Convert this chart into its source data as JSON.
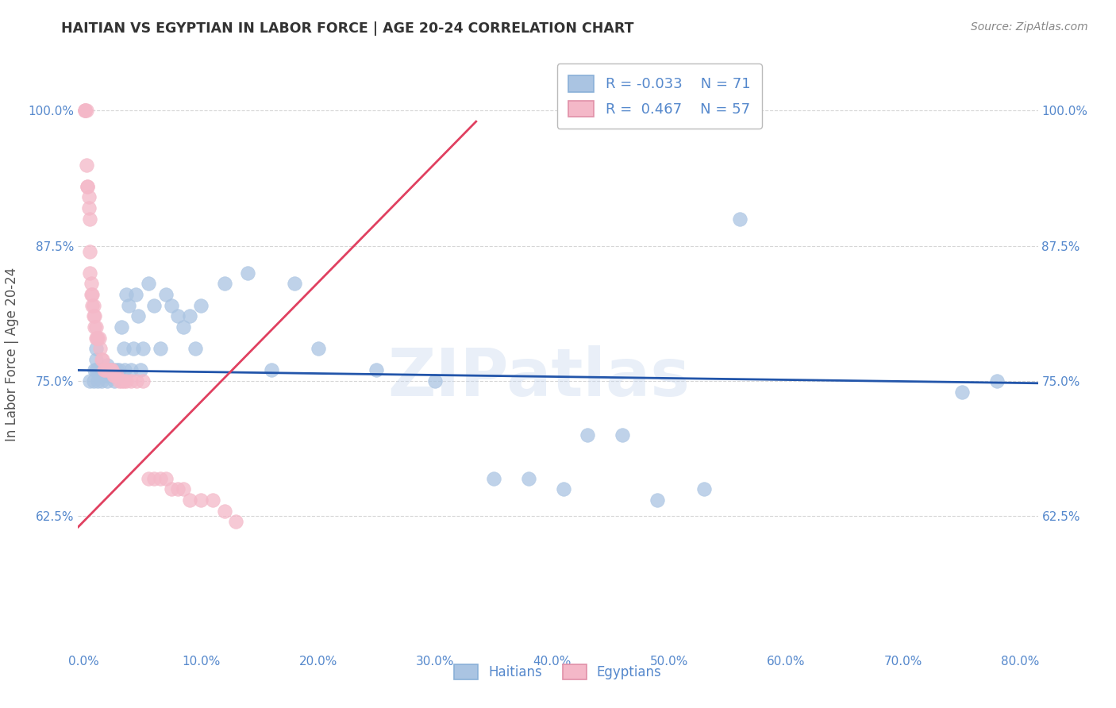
{
  "title": "HAITIAN VS EGYPTIAN IN LABOR FORCE | AGE 20-24 CORRELATION CHART",
  "source": "Source: ZipAtlas.com",
  "ylabel": "In Labor Force | Age 20-24",
  "x_tick_labels": [
    "0.0%",
    "",
    "10.0%",
    "",
    "20.0%",
    "",
    "30.0%",
    "",
    "40.0%",
    "",
    "50.0%",
    "",
    "60.0%",
    "",
    "70.0%",
    "",
    "80.0%"
  ],
  "x_tick_values": [
    0.0,
    0.05,
    0.1,
    0.15,
    0.2,
    0.25,
    0.3,
    0.35,
    0.4,
    0.45,
    0.5,
    0.55,
    0.6,
    0.65,
    0.7,
    0.75,
    0.8
  ],
  "x_major_ticks": [
    0.0,
    0.1,
    0.2,
    0.3,
    0.4,
    0.5,
    0.6,
    0.7,
    0.8
  ],
  "x_major_labels": [
    "0.0%",
    "10.0%",
    "20.0%",
    "30.0%",
    "40.0%",
    "50.0%",
    "60.0%",
    "70.0%",
    "80.0%"
  ],
  "y_tick_labels": [
    "62.5%",
    "75.0%",
    "87.5%",
    "100.0%"
  ],
  "y_tick_values": [
    0.625,
    0.75,
    0.875,
    1.0
  ],
  "ylim": [
    0.5,
    1.05
  ],
  "xlim": [
    -0.005,
    0.815
  ],
  "legend_blue_r": "-0.033",
  "legend_blue_n": "71",
  "legend_pink_r": "0.467",
  "legend_pink_n": "57",
  "blue_color": "#aac4e2",
  "pink_color": "#f4b8c8",
  "blue_line_color": "#2255aa",
  "pink_line_color": "#e04060",
  "axis_label_color": "#5588cc",
  "title_color": "#333333",
  "grid_color": "#cccccc",
  "watermark": "ZIPatlas",
  "blue_trend_x0": -0.005,
  "blue_trend_x1": 0.815,
  "blue_trend_y0": 0.76,
  "blue_trend_y1": 0.748,
  "pink_trend_x0": -0.005,
  "pink_trend_x1": 0.335,
  "pink_trend_y0": 0.615,
  "pink_trend_y1": 0.99,
  "blue_scatter_x": [
    0.005,
    0.008,
    0.009,
    0.01,
    0.01,
    0.01,
    0.012,
    0.012,
    0.013,
    0.014,
    0.015,
    0.015,
    0.016,
    0.016,
    0.017,
    0.017,
    0.018,
    0.018,
    0.019,
    0.019,
    0.02,
    0.02,
    0.02,
    0.021,
    0.022,
    0.023,
    0.024,
    0.025,
    0.026,
    0.027,
    0.028,
    0.029,
    0.03,
    0.032,
    0.034,
    0.035,
    0.036,
    0.038,
    0.04,
    0.042,
    0.044,
    0.046,
    0.048,
    0.05,
    0.055,
    0.06,
    0.065,
    0.07,
    0.075,
    0.08,
    0.085,
    0.09,
    0.095,
    0.1,
    0.12,
    0.14,
    0.16,
    0.18,
    0.2,
    0.25,
    0.3,
    0.35,
    0.38,
    0.41,
    0.43,
    0.46,
    0.49,
    0.53,
    0.56,
    0.75,
    0.78
  ],
  "blue_scatter_y": [
    0.75,
    0.75,
    0.76,
    0.76,
    0.77,
    0.78,
    0.75,
    0.76,
    0.755,
    0.76,
    0.75,
    0.76,
    0.755,
    0.76,
    0.755,
    0.76,
    0.755,
    0.76,
    0.755,
    0.76,
    0.75,
    0.755,
    0.765,
    0.76,
    0.755,
    0.76,
    0.755,
    0.76,
    0.75,
    0.755,
    0.76,
    0.755,
    0.76,
    0.8,
    0.78,
    0.76,
    0.83,
    0.82,
    0.76,
    0.78,
    0.83,
    0.81,
    0.76,
    0.78,
    0.84,
    0.82,
    0.78,
    0.83,
    0.82,
    0.81,
    0.8,
    0.81,
    0.78,
    0.82,
    0.84,
    0.85,
    0.76,
    0.84,
    0.78,
    0.76,
    0.75,
    0.66,
    0.66,
    0.65,
    0.7,
    0.7,
    0.64,
    0.65,
    0.9,
    0.74,
    0.75
  ],
  "pink_scatter_x": [
    0.001,
    0.001,
    0.001,
    0.002,
    0.002,
    0.003,
    0.003,
    0.004,
    0.004,
    0.005,
    0.005,
    0.005,
    0.006,
    0.006,
    0.007,
    0.007,
    0.008,
    0.008,
    0.009,
    0.009,
    0.01,
    0.01,
    0.011,
    0.012,
    0.013,
    0.014,
    0.015,
    0.016,
    0.017,
    0.018,
    0.02,
    0.021,
    0.022,
    0.023,
    0.024,
    0.025,
    0.026,
    0.028,
    0.03,
    0.032,
    0.034,
    0.036,
    0.04,
    0.045,
    0.05,
    0.055,
    0.06,
    0.065,
    0.07,
    0.075,
    0.08,
    0.085,
    0.09,
    0.1,
    0.11,
    0.12,
    0.13
  ],
  "pink_scatter_y": [
    1.0,
    1.0,
    1.0,
    1.0,
    0.95,
    0.93,
    0.93,
    0.92,
    0.91,
    0.9,
    0.87,
    0.85,
    0.84,
    0.83,
    0.83,
    0.82,
    0.82,
    0.81,
    0.81,
    0.8,
    0.8,
    0.79,
    0.79,
    0.79,
    0.79,
    0.78,
    0.77,
    0.77,
    0.76,
    0.76,
    0.76,
    0.76,
    0.76,
    0.76,
    0.76,
    0.755,
    0.755,
    0.755,
    0.75,
    0.75,
    0.75,
    0.75,
    0.75,
    0.75,
    0.75,
    0.66,
    0.66,
    0.66,
    0.66,
    0.65,
    0.65,
    0.65,
    0.64,
    0.64,
    0.64,
    0.63,
    0.62
  ]
}
